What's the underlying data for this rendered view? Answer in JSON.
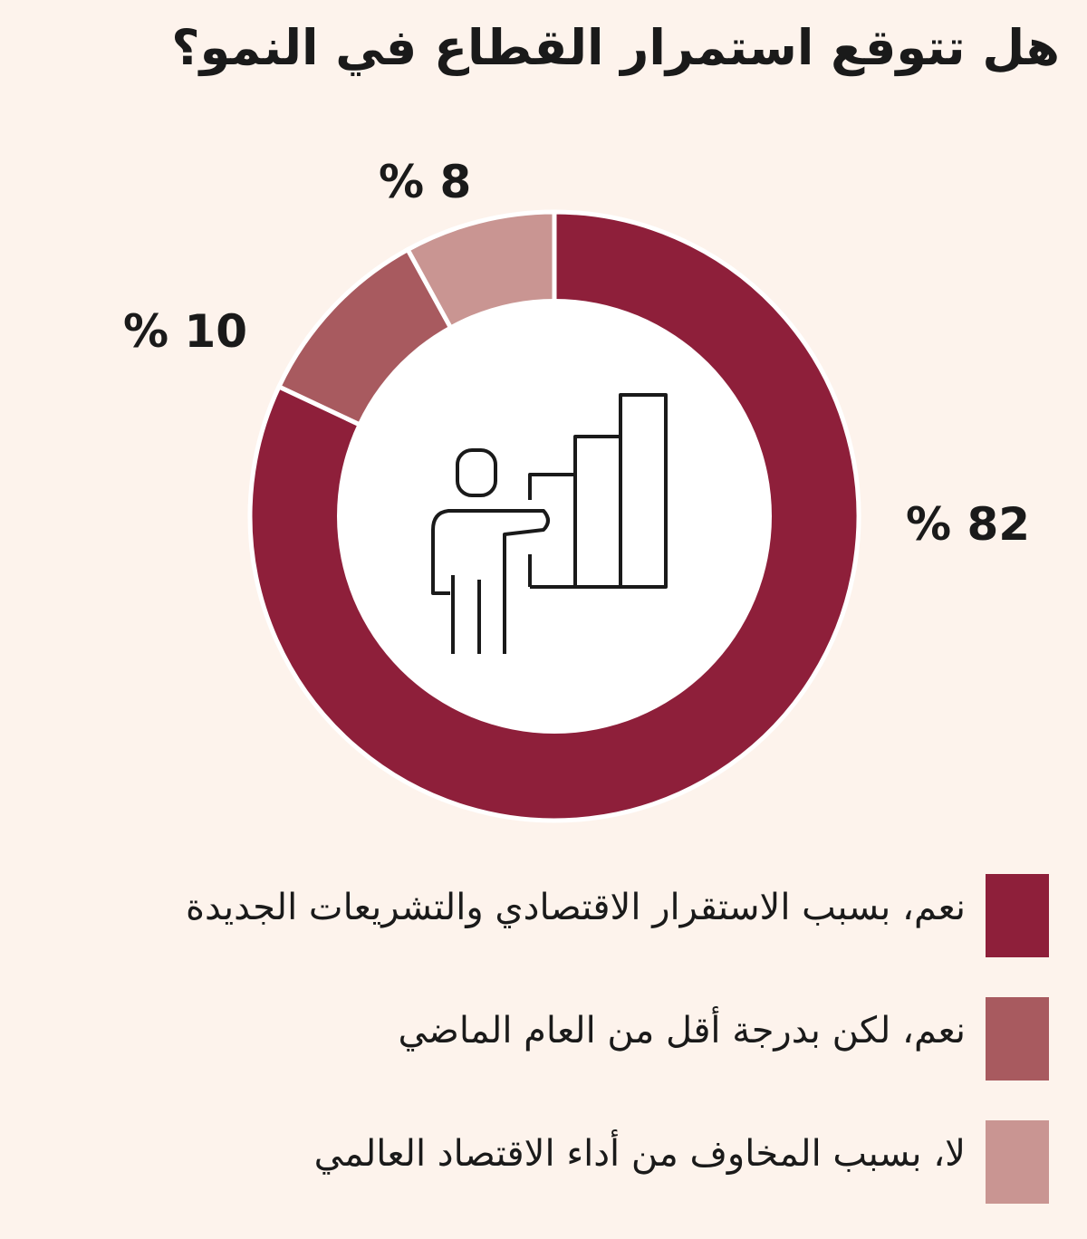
{
  "chart_data": {
    "type": "pie",
    "variant": "donut",
    "title": "هل تتوقع استمرار القطاع في النمو؟",
    "categories": [
      "نعم، بسبب الاستقرار الاقتصادي والتشريعات الجديدة",
      "نعم، لكن بدرجة أقل من العام الماضي",
      "لا، بسبب المخاوف من أداء الاقتصاد العالمي"
    ],
    "values": [
      82,
      10,
      8
    ],
    "value_labels": [
      "% 82",
      "% 10",
      "% 8"
    ],
    "colors": [
      "#8e1f3a",
      "#a85a5f",
      "#c99592"
    ],
    "center_icon": "presenter-bar-chart-icon",
    "legend_position": "bottom"
  }
}
